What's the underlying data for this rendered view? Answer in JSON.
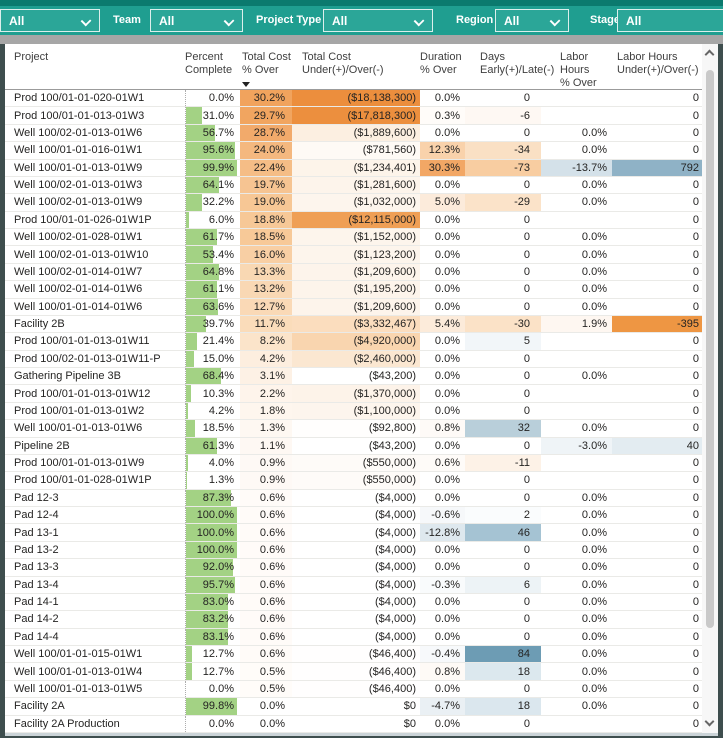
{
  "filters": {
    "items": [
      {
        "label": "",
        "value": "All"
      },
      {
        "label": "Team",
        "value": "All"
      },
      {
        "label": "Project Type",
        "value": "All"
      },
      {
        "label": "Region",
        "value": "All"
      },
      {
        "label": "Stage",
        "value": "All"
      }
    ]
  },
  "icons": {
    "dropdown": "chevron-down-icon",
    "sort": "triangle-down-icon",
    "scroll_up": "chevron-up-icon",
    "scroll_down": "chevron-down-icon"
  },
  "table": {
    "sort": {
      "column": "Total Cost % Over",
      "direction": "descending"
    },
    "columns": [
      {
        "key": "project",
        "header_line1": "Project",
        "header_line2": ""
      },
      {
        "key": "pct",
        "header_line1": "Percent",
        "header_line2": "Complete"
      },
      {
        "key": "cost_pct",
        "header_line1": "Total Cost",
        "header_line2": "% Over",
        "sorted": true
      },
      {
        "key": "cost_under",
        "header_line1": "Total Cost",
        "header_line2": "Under(+)/Over(-)"
      },
      {
        "key": "dur_pct",
        "header_line1": "Duration",
        "header_line2": "% Over"
      },
      {
        "key": "days",
        "header_line1": "Days",
        "header_line2": "Early(+)/Late(-)"
      },
      {
        "key": "labor_pct",
        "header_line1": "Labor Hours",
        "header_line2": "% Over"
      },
      {
        "key": "labor_under",
        "header_line1": "Labor Hours",
        "header_line2": "Under(+)/Over(-)"
      }
    ],
    "rows": [
      {
        "project": "Prod 100/01-01-020-01W1",
        "pct": "0.0%",
        "bar": 0,
        "cost_pct": "30.2%",
        "cost_under": "($18,138,300)",
        "dur_pct": "0.0%",
        "days": "0",
        "labor_pct": "",
        "labor_under": "0",
        "bg": {
          "cost_pct": "#F1A35D",
          "cost_under": "#EC8E3D"
        }
      },
      {
        "project": "Prod 100/01-01-013-01W3",
        "pct": "31.0%",
        "bar": 31,
        "cost_pct": "29.7%",
        "cost_under": "($17,818,300)",
        "dur_pct": "0.3%",
        "days": "-6",
        "labor_pct": "",
        "labor_under": "0",
        "bg": {
          "cost_pct": "#F1A560",
          "cost_under": "#EC8F3E",
          "dur_pct": "#FFFCF9",
          "days": "#FEF8F3"
        }
      },
      {
        "project": "Well 100/02-01-013-01W6",
        "pct": "56.7%",
        "bar": 56.7,
        "cost_pct": "28.7%",
        "cost_under": "($1,889,600)",
        "dur_pct": "0.0%",
        "days": "0",
        "labor_pct": "0.0%",
        "labor_under": "0",
        "bg": {
          "cost_pct": "#F2AA6B",
          "cost_under": "#FCEFE1"
        }
      },
      {
        "project": "Well 100/01-01-016-01W1",
        "pct": "95.6%",
        "bar": 95.6,
        "cost_pct": "24.0%",
        "cost_under": "($781,560)",
        "dur_pct": "12.3%",
        "days": "-34",
        "labor_pct": "0.0%",
        "labor_under": "0",
        "bg": {
          "cost_pct": "#F4B87F",
          "cost_under": "#FEFAF5",
          "dur_pct": "#F9D2AB",
          "days": "#FAE0C4"
        }
      },
      {
        "project": "Well 100/01-01-013-01W9",
        "pct": "99.9%",
        "bar": 99.9,
        "cost_pct": "22.4%",
        "cost_under": "($1,234,401)",
        "dur_pct": "30.3%",
        "days": "-73",
        "labor_pct": "-13.7%",
        "labor_under": "792",
        "bg": {
          "cost_pct": "#F5BD86",
          "cost_under": "#FDF4EA",
          "dur_pct": "#F2A765",
          "days": "#F8CDA1",
          "labor_pct": "#D4E1E9",
          "labor_under": "#8FB2C6"
        }
      },
      {
        "project": "Well 100/02-01-013-01W3",
        "pct": "64.1%",
        "bar": 64.1,
        "cost_pct": "19.7%",
        "cost_under": "($1,281,600)",
        "dur_pct": "0.0%",
        "days": "0",
        "labor_pct": "0.0%",
        "labor_under": "0",
        "bg": {
          "cost_pct": "#F6C492",
          "cost_under": "#FDF4EB"
        }
      },
      {
        "project": "Well 100/02-01-013-01W9",
        "pct": "32.2%",
        "bar": 32.2,
        "cost_pct": "19.0%",
        "cost_under": "($1,032,000)",
        "dur_pct": "5.0%",
        "days": "-29",
        "labor_pct": "0.0%",
        "labor_under": "0",
        "bg": {
          "cost_pct": "#F7C795",
          "cost_under": "#FDF5ED",
          "dur_pct": "#FCEBDB",
          "days": "#FBE3C9"
        }
      },
      {
        "project": "Prod 100/01-01-026-01W1P",
        "pct": "6.0%",
        "bar": 6,
        "cost_pct": "18.8%",
        "cost_under": "($12,115,000)",
        "dur_pct": "0.0%",
        "days": "0",
        "labor_pct": "",
        "labor_under": "0",
        "bg": {
          "cost_pct": "#F7C897",
          "cost_under": "#EF9F55"
        }
      },
      {
        "project": "Well 100/02-01-028-01W1",
        "pct": "61.7%",
        "bar": 61.7,
        "cost_pct": "18.5%",
        "cost_under": "($1,152,000)",
        "dur_pct": "0.0%",
        "days": "0",
        "labor_pct": "0.0%",
        "labor_under": "0",
        "bg": {
          "cost_pct": "#F7C998",
          "cost_under": "#FDF5EC"
        }
      },
      {
        "project": "Well 100/02-01-013-01W10",
        "pct": "53.4%",
        "bar": 53.4,
        "cost_pct": "16.0%",
        "cost_under": "($1,123,200)",
        "dur_pct": "0.0%",
        "days": "0",
        "labor_pct": "0.0%",
        "labor_under": "0",
        "bg": {
          "cost_pct": "#F8CFA4",
          "cost_under": "#FDF5EC"
        }
      },
      {
        "project": "Well 100/02-01-014-01W7",
        "pct": "64.8%",
        "bar": 64.8,
        "cost_pct": "13.3%",
        "cost_under": "($1,209,600)",
        "dur_pct": "0.0%",
        "days": "0",
        "labor_pct": "0.0%",
        "labor_under": "0",
        "bg": {
          "cost_pct": "#F9D8B3",
          "cost_under": "#FDF4EB"
        }
      },
      {
        "project": "Well 100/02-01-014-01W6",
        "pct": "61.1%",
        "bar": 61.1,
        "cost_pct": "13.2%",
        "cost_under": "($1,195,200)",
        "dur_pct": "0.0%",
        "days": "0",
        "labor_pct": "0.0%",
        "labor_under": "0",
        "bg": {
          "cost_pct": "#F9D8B4",
          "cost_under": "#FDF4EB"
        }
      },
      {
        "project": "Well 100/01-01-014-01W6",
        "pct": "63.6%",
        "bar": 63.6,
        "cost_pct": "12.7%",
        "cost_under": "($1,209,600)",
        "dur_pct": "0.0%",
        "days": "0",
        "labor_pct": "0.0%",
        "labor_under": "0",
        "bg": {
          "cost_pct": "#FAD9B6",
          "cost_under": "#FDF4EB"
        }
      },
      {
        "project": "Facility 2B",
        "pct": "39.7%",
        "bar": 39.7,
        "cost_pct": "11.7%",
        "cost_under": "($3,332,467)",
        "dur_pct": "5.4%",
        "days": "-30",
        "labor_pct": "1.9%",
        "labor_under": "-395",
        "bg": {
          "cost_pct": "#FADCBA",
          "cost_under": "#FBDDBE",
          "dur_pct": "#FCEBDA",
          "days": "#FBE2C7",
          "labor_pct": "#FEF7F1",
          "labor_under": "#EE9643"
        }
      },
      {
        "project": "Prod 100/01-01-013-01W11",
        "pct": "21.4%",
        "bar": 21.4,
        "cost_pct": "8.2%",
        "cost_under": "($4,920,000)",
        "dur_pct": "0.0%",
        "days": "5",
        "labor_pct": "",
        "labor_under": "0",
        "bg": {
          "cost_pct": "#FBE4CA",
          "cost_under": "#F9D5AF",
          "days": "#F2F6F9"
        }
      },
      {
        "project": "Prod 100/02-01-013-01W11-P",
        "pct": "15.0%",
        "bar": 15,
        "cost_pct": "4.2%",
        "cost_under": "($2,460,000)",
        "dur_pct": "0.0%",
        "days": "0",
        "labor_pct": "",
        "labor_under": "0",
        "bg": {
          "cost_pct": "#FDEEDF",
          "cost_under": "#FBE7D1"
        }
      },
      {
        "project": "Gathering Pipeline 3B",
        "pct": "68.4%",
        "bar": 68.4,
        "cost_pct": "3.1%",
        "cost_under": "($43,200)",
        "dur_pct": "0.0%",
        "days": "0",
        "labor_pct": "0.0%",
        "labor_under": "0",
        "bg": {
          "cost_pct": "#FDF1E5"
        }
      },
      {
        "project": "Prod 100/01-01-013-01W12",
        "pct": "10.3%",
        "bar": 10.3,
        "cost_pct": "2.2%",
        "cost_under": "($1,370,000)",
        "dur_pct": "0.0%",
        "days": "0",
        "labor_pct": "",
        "labor_under": "0",
        "bg": {
          "cost_pct": "#FEF4EB",
          "cost_under": "#FDF3E9"
        }
      },
      {
        "project": "Prod 100/01-01-013-01W2",
        "pct": "4.2%",
        "bar": 4.2,
        "cost_pct": "1.8%",
        "cost_under": "($1,100,000)",
        "dur_pct": "0.0%",
        "days": "0",
        "labor_pct": "",
        "labor_under": "0",
        "bg": {
          "cost_pct": "#FEF6EE",
          "cost_under": "#FDF5ED"
        }
      },
      {
        "project": "Well 100/01-01-013-01W6",
        "pct": "18.5%",
        "bar": 18.5,
        "cost_pct": "1.3%",
        "cost_under": "($92,800)",
        "dur_pct": "0.8%",
        "days": "32",
        "labor_pct": "0.0%",
        "labor_under": "0",
        "bg": {
          "cost_pct": "#FEF8F2",
          "cost_under": "#FFFEFD",
          "dur_pct": "#FEFAF7",
          "days": "#B9CFDA"
        }
      },
      {
        "project": "Pipeline 2B",
        "pct": "61.3%",
        "bar": 61.3,
        "cost_pct": "1.1%",
        "cost_under": "($43,200)",
        "dur_pct": "0.0%",
        "days": "0",
        "labor_pct": "-3.0%",
        "labor_under": "40",
        "bg": {
          "cost_pct": "#FEF8F3",
          "labor_pct": "#EFF4F7",
          "labor_under": "#E3ECF1"
        }
      },
      {
        "project": "Prod 100/01-01-013-01W9",
        "pct": "4.0%",
        "bar": 4,
        "cost_pct": "0.9%",
        "cost_under": "($550,000)",
        "dur_pct": "0.6%",
        "days": "-11",
        "labor_pct": "",
        "labor_under": "0",
        "bg": {
          "cost_pct": "#FEF9F5",
          "cost_under": "#FEFBF8",
          "dur_pct": "#FEFBF8",
          "days": "#FDF2E7"
        }
      },
      {
        "project": "Prod 100/01-01-028-01W1P",
        "pct": "1.3%",
        "bar": 1.3,
        "cost_pct": "0.9%",
        "cost_under": "($550,000)",
        "dur_pct": "0.0%",
        "days": "0",
        "labor_pct": "",
        "labor_under": "0",
        "bg": {
          "cost_pct": "#FEF9F5",
          "cost_under": "#FEFBF8"
        }
      },
      {
        "project": "Pad 12-3",
        "pct": "87.3%",
        "bar": 87.3,
        "cost_pct": "0.6%",
        "cost_under": "($4,000)",
        "dur_pct": "0.0%",
        "days": "0",
        "labor_pct": "0.0%",
        "labor_under": "0",
        "bg": {
          "cost_pct": "#FFFBF8"
        }
      },
      {
        "project": "Pad 12-4",
        "pct": "100.0%",
        "bar": 100,
        "cost_pct": "0.6%",
        "cost_under": "($4,000)",
        "dur_pct": "-0.6%",
        "days": "2",
        "labor_pct": "0.0%",
        "labor_under": "0",
        "bg": {
          "cost_pct": "#FFFBF8",
          "dur_pct": "#F6F8FA",
          "days": "#FAFCFD"
        }
      },
      {
        "project": "Pad 13-1",
        "pct": "100.0%",
        "bar": 100,
        "cost_pct": "0.6%",
        "cost_under": "($4,000)",
        "dur_pct": "-12.8%",
        "days": "46",
        "labor_pct": "0.0%",
        "labor_under": "0",
        "bg": {
          "cost_pct": "#FFFBF8",
          "dur_pct": "#DEE8EE",
          "days": "#A5C3D3"
        }
      },
      {
        "project": "Pad 13-2",
        "pct": "100.0%",
        "bar": 100,
        "cost_pct": "0.6%",
        "cost_under": "($4,000)",
        "dur_pct": "0.0%",
        "days": "0",
        "labor_pct": "0.0%",
        "labor_under": "0",
        "bg": {
          "cost_pct": "#FFFBF8"
        }
      },
      {
        "project": "Pad 13-3",
        "pct": "92.0%",
        "bar": 92,
        "cost_pct": "0.6%",
        "cost_under": "($4,000)",
        "dur_pct": "0.0%",
        "days": "0",
        "labor_pct": "0.0%",
        "labor_under": "0",
        "bg": {
          "cost_pct": "#FFFBF8"
        }
      },
      {
        "project": "Pad 13-4",
        "pct": "95.7%",
        "bar": 95.7,
        "cost_pct": "0.6%",
        "cost_under": "($4,000)",
        "dur_pct": "-0.3%",
        "days": "6",
        "labor_pct": "0.0%",
        "labor_under": "0",
        "bg": {
          "cost_pct": "#FFFBF8",
          "dur_pct": "#F9FBFC",
          "days": "#EDF3F6"
        }
      },
      {
        "project": "Pad 14-1",
        "pct": "83.0%",
        "bar": 83,
        "cost_pct": "0.6%",
        "cost_under": "($4,000)",
        "dur_pct": "0.0%",
        "days": "0",
        "labor_pct": "0.0%",
        "labor_under": "0",
        "bg": {
          "cost_pct": "#FFFBF8"
        }
      },
      {
        "project": "Pad 14-2",
        "pct": "83.2%",
        "bar": 83.2,
        "cost_pct": "0.6%",
        "cost_under": "($4,000)",
        "dur_pct": "0.0%",
        "days": "0",
        "labor_pct": "0.0%",
        "labor_under": "0",
        "bg": {
          "cost_pct": "#FFFBF8"
        }
      },
      {
        "project": "Pad 14-4",
        "pct": "83.1%",
        "bar": 83.1,
        "cost_pct": "0.6%",
        "cost_under": "($4,000)",
        "dur_pct": "0.0%",
        "days": "0",
        "labor_pct": "0.0%",
        "labor_under": "0",
        "bg": {
          "cost_pct": "#FFFBF8"
        }
      },
      {
        "project": "Well 100/01-01-015-01W1",
        "pct": "12.7%",
        "bar": 12.7,
        "cost_pct": "0.6%",
        "cost_under": "($46,400)",
        "dur_pct": "-0.4%",
        "days": "84",
        "labor_pct": "0.0%",
        "labor_under": "0",
        "bg": {
          "cost_pct": "#FFFBF8",
          "cost_under": "#FFFEFE",
          "dur_pct": "#F7F9FB",
          "days": "#6D9CB4"
        }
      },
      {
        "project": "Well 100/01-01-013-01W4",
        "pct": "12.7%",
        "bar": 12.7,
        "cost_pct": "0.5%",
        "cost_under": "($46,400)",
        "dur_pct": "0.8%",
        "days": "18",
        "labor_pct": "0.0%",
        "labor_under": "0",
        "bg": {
          "cost_pct": "#FFFCF9",
          "cost_under": "#FFFEFE",
          "dur_pct": "#FEFAF6",
          "days": "#DCE8EE"
        }
      },
      {
        "project": "Well 100/01-01-013-01W5",
        "pct": "0.0%",
        "bar": 0,
        "cost_pct": "0.5%",
        "cost_under": "($46,400)",
        "dur_pct": "0.0%",
        "days": "0",
        "labor_pct": "0.0%",
        "labor_under": "0",
        "bg": {
          "cost_pct": "#FFFCF9",
          "cost_under": "#FFFEFE"
        }
      },
      {
        "project": "Facility 2A",
        "pct": "99.8%",
        "bar": 99.8,
        "cost_pct": "0.0%",
        "cost_under": "$0",
        "dur_pct": "-4.7%",
        "days": "18",
        "labor_pct": "0.0%",
        "labor_under": "0",
        "bg": {
          "dur_pct": "#EAF0F4",
          "days": "#DBE7EE"
        }
      },
      {
        "project": "Facility 2A Production",
        "pct": "0.0%",
        "bar": 0,
        "cost_pct": "0.0%",
        "cost_under": "$0",
        "dur_pct": "0.0%",
        "days": "0",
        "labor_pct": "",
        "labor_under": "0",
        "bg": {}
      }
    ]
  },
  "colors": {
    "topbar_teal": "#1F9E90",
    "topbar_dark": "#0B7A6E",
    "frame": "#3E4E4E",
    "bar_green": "#A3D284",
    "heat_orange_max": "#EC8E3D",
    "heat_blue_max": "#6D9CB4"
  }
}
